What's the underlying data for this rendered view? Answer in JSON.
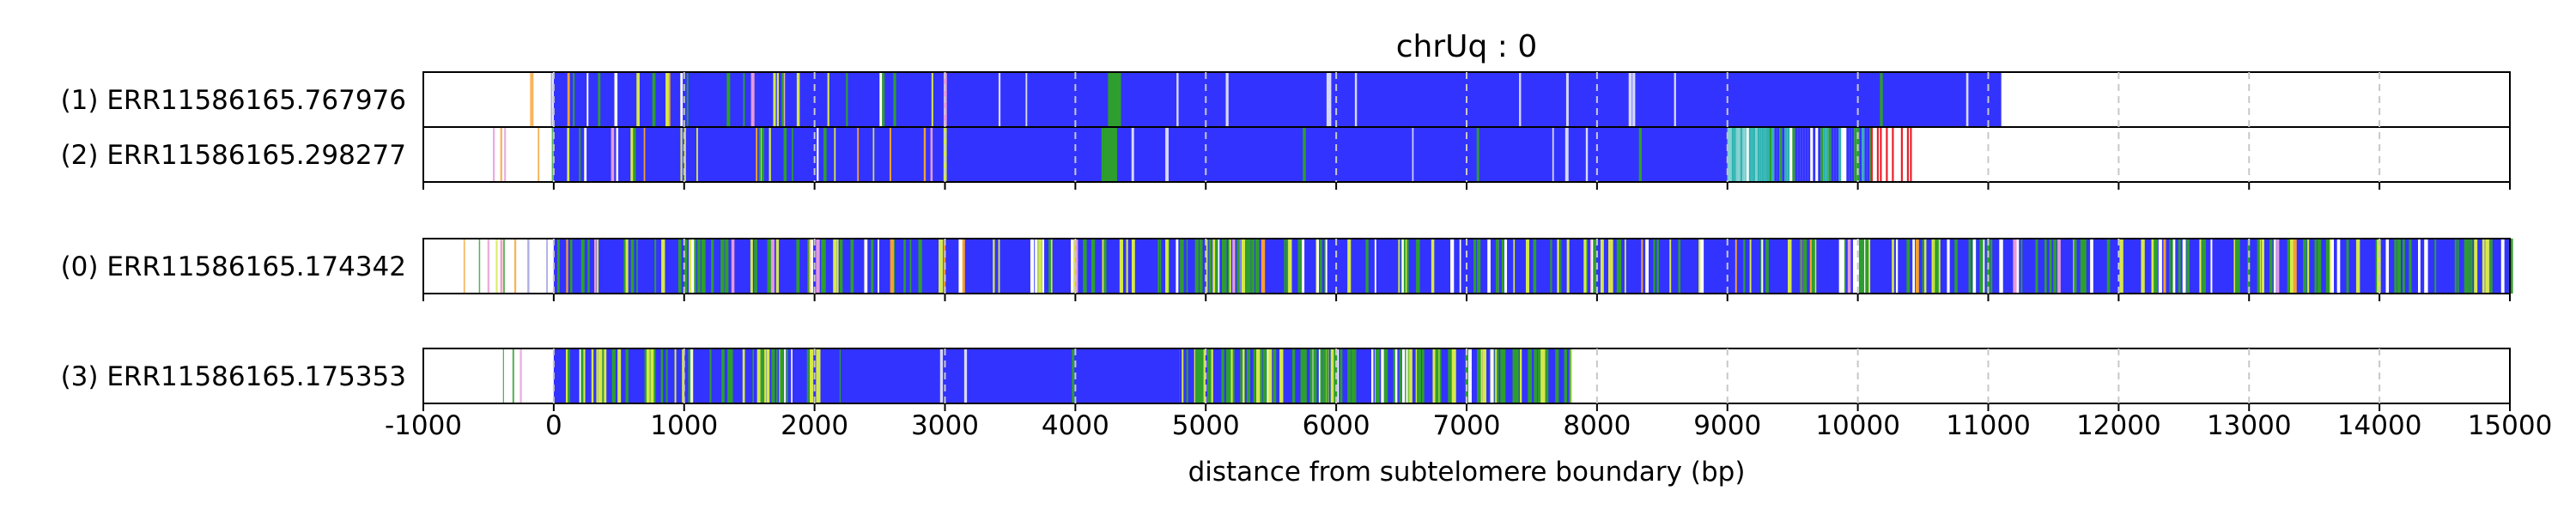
{
  "chart_data": {
    "type": "track-plot",
    "title": "chrUq : 0",
    "xlabel": "distance from subtelomere boundary (bp)",
    "xlim": [
      -1000,
      15000
    ],
    "xticks": [
      -1000,
      0,
      1000,
      2000,
      3000,
      4000,
      5000,
      6000,
      7000,
      8000,
      9000,
      10000,
      11000,
      12000,
      13000,
      14000,
      15000
    ],
    "grid": "vertical dashed gridlines at 1000 bp",
    "colors": {
      "blue": "#3333ff",
      "green": "#2e9e2e",
      "yellow": "#d6e84a",
      "orange": "#f5a030",
      "pink": "#e59ad8",
      "cyan": "#2fb3b3",
      "red": "#e8202a",
      "grid": "#c8c8c8"
    },
    "groups": [
      {
        "tracks": [
          {
            "label": "(1) ERR11586165.767976",
            "read_start": -500,
            "read_end": 11100,
            "segments": [
              {
                "start": 0,
                "end": 11100,
                "type": "blue-repeat"
              },
              {
                "start": 4250,
                "end": 4350,
                "type": "green-block"
              },
              {
                "start": -500,
                "end": 0,
                "type": "sparse-flank"
              }
            ]
          },
          {
            "label": "(2) ERR11586165.298277",
            "read_start": -500,
            "read_end": 10400,
            "segments": [
              {
                "start": 0,
                "end": 9000,
                "type": "blue-repeat"
              },
              {
                "start": 4200,
                "end": 4320,
                "type": "green-block"
              },
              {
                "start": 9000,
                "end": 9300,
                "type": "cyan-block"
              },
              {
                "start": 9300,
                "end": 10100,
                "type": "mixed-tail"
              },
              {
                "start": 10100,
                "end": 10400,
                "type": "red-tail"
              },
              {
                "start": -500,
                "end": 0,
                "type": "sparse-flank"
              }
            ]
          }
        ]
      },
      {
        "tracks": [
          {
            "label": "(0) ERR11586165.174342",
            "read_start": -850,
            "read_end": 15000,
            "segments": [
              {
                "start": 0,
                "end": 15000,
                "type": "mixed-repeat"
              },
              {
                "start": -850,
                "end": 0,
                "type": "sparse-flank"
              }
            ]
          }
        ]
      },
      {
        "tracks": [
          {
            "label": "(3) ERR11586165.175353",
            "read_start": -400,
            "read_end": 7800,
            "segments": [
              {
                "start": 0,
                "end": 2200,
                "type": "mixed-repeat"
              },
              {
                "start": 2200,
                "end": 4800,
                "type": "blue-repeat"
              },
              {
                "start": 4800,
                "end": 7800,
                "type": "green-yellow-repeat"
              },
              {
                "start": -400,
                "end": 0,
                "type": "sparse-flank"
              }
            ]
          }
        ]
      }
    ]
  }
}
